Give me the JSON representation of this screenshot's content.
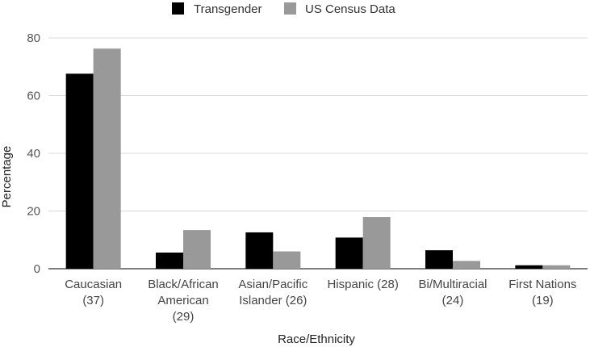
{
  "chart_data": {
    "type": "bar",
    "categories": [
      [
        "Caucasian",
        "(37)"
      ],
      [
        "Black/African",
        "American",
        "(29)"
      ],
      [
        "Asian/Pacific",
        "Islander (26)"
      ],
      [
        "Hispanic (28)"
      ],
      [
        "Bi/Multiracial",
        "(24)"
      ],
      [
        "First Nations",
        "(19)"
      ]
    ],
    "series": [
      {
        "name": "Transgender",
        "color": "#000000",
        "values": [
          67.6,
          5.6,
          12.6,
          10.8,
          6.4,
          1.2
        ]
      },
      {
        "name": "US Census Data",
        "color": "#999999",
        "values": [
          76.3,
          13.4,
          6.0,
          17.9,
          2.7,
          1.2
        ]
      }
    ],
    "xlabel": "Race/Ethnicity",
    "ylabel": "Percentage",
    "ylim": [
      0,
      80
    ],
    "yticks": [
      0,
      20,
      40,
      60,
      80
    ],
    "grid": true,
    "legend_position": "top-center"
  }
}
